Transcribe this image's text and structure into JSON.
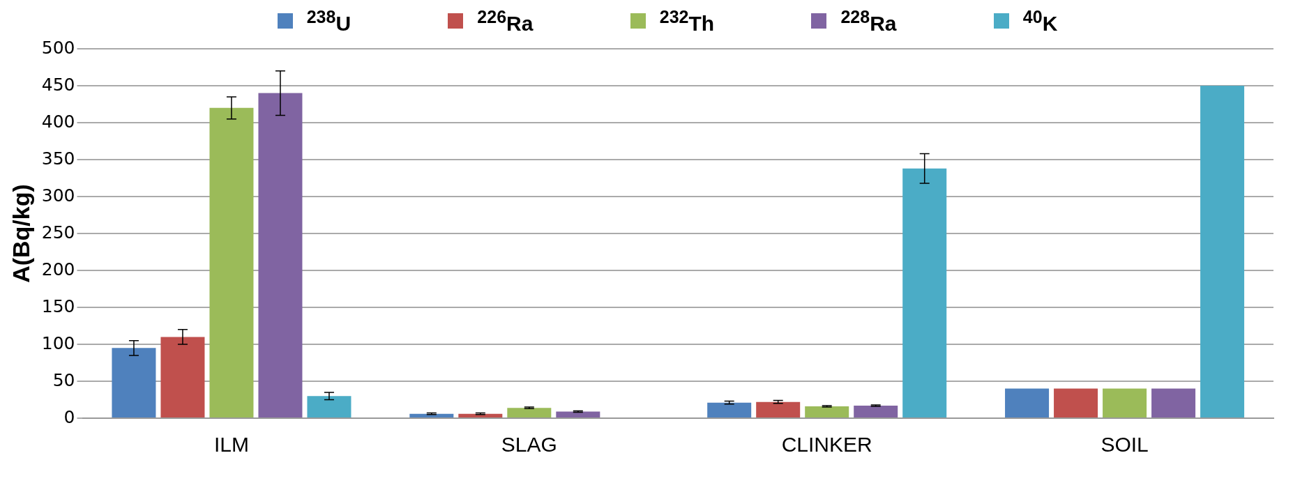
{
  "chart_data": {
    "type": "bar",
    "ylabel": "A(Bq/kg)",
    "categories": [
      "ILM",
      "SLAG",
      "CLINKER",
      "SOIL"
    ],
    "series": [
      {
        "name": "$^{238}$U",
        "color": "#4f81bd",
        "values": [
          95,
          6,
          21,
          40
        ],
        "errors": [
          10,
          1,
          2,
          null
        ]
      },
      {
        "name": "$^{226}$Ra",
        "color": "#c0504d",
        "values": [
          110,
          6,
          22,
          40
        ],
        "errors": [
          10,
          1,
          2,
          null
        ]
      },
      {
        "name": "$^{232}$Th",
        "color": "#9bbb59",
        "values": [
          420,
          14,
          16,
          40
        ],
        "errors": [
          15,
          1,
          1,
          null
        ]
      },
      {
        "name": "$^{228}$Ra",
        "color": "#8064a2",
        "values": [
          440,
          9,
          17,
          40
        ],
        "errors": [
          30,
          1,
          1,
          null
        ]
      },
      {
        "name": "$^{40}$K",
        "color": "#4bacc6",
        "values": [
          30,
          null,
          338,
          450
        ],
        "errors": [
          5,
          null,
          20,
          null
        ]
      }
    ],
    "ylim": [
      0,
      500
    ],
    "yticks": [
      0,
      50,
      100,
      150,
      200,
      250,
      300,
      350,
      400,
      450,
      500
    ],
    "grid": "y",
    "legend": "top"
  }
}
